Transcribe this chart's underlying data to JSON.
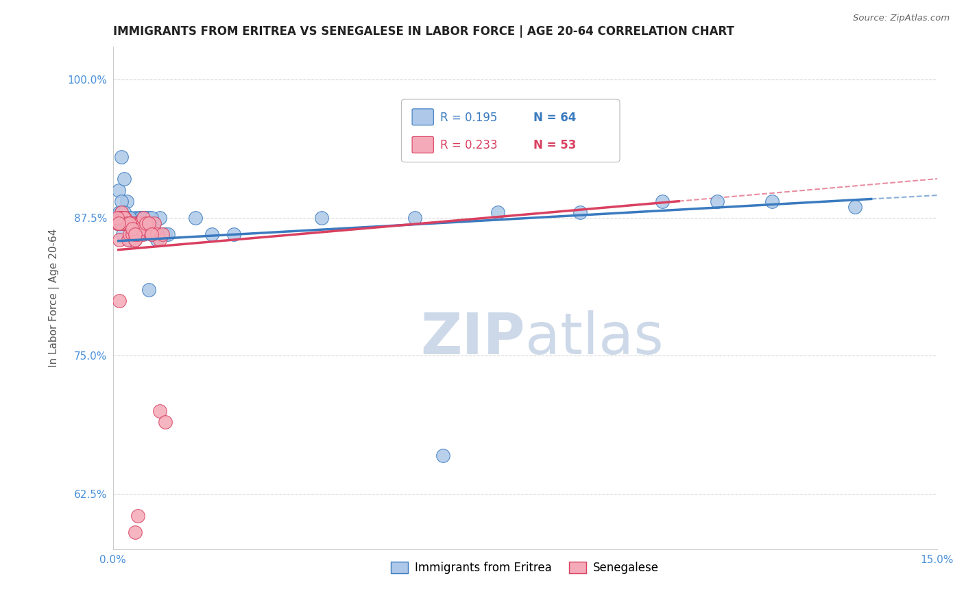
{
  "title": "IMMIGRANTS FROM ERITREA VS SENEGALESE IN LABOR FORCE | AGE 20-64 CORRELATION CHART",
  "source": "Source: ZipAtlas.com",
  "ylabel": "In Labor Force | Age 20-64",
  "xlim": [
    0.0,
    0.15
  ],
  "ylim": [
    0.575,
    1.03
  ],
  "yticks": [
    0.625,
    0.75,
    0.875,
    1.0
  ],
  "ytick_labels": [
    "62.5%",
    "75.0%",
    "87.5%",
    "100.0%"
  ],
  "xticks": [
    0.0,
    0.05,
    0.1,
    0.15
  ],
  "xtick_labels": [
    "0.0%",
    "",
    "",
    "15.0%"
  ],
  "r_eritrea": 0.195,
  "n_eritrea": 64,
  "r_senegal": 0.233,
  "n_senegal": 53,
  "eritrea_color": "#adc8e8",
  "senegal_color": "#f4aab8",
  "line_eritrea": "#3a7abf",
  "line_senegal": "#d94060",
  "watermark_color": "#cdd9e8",
  "tick_color": "#4a90d9",
  "grid_color": "#d8d8d8",
  "eritrea_x": [
    0.0008,
    0.001,
    0.0012,
    0.0015,
    0.0018,
    0.002,
    0.0022,
    0.0025,
    0.0028,
    0.003,
    0.0032,
    0.0035,
    0.0038,
    0.004,
    0.0042,
    0.0045,
    0.0048,
    0.005,
    0.0055,
    0.006,
    0.0065,
    0.007,
    0.0075,
    0.008,
    0.0085,
    0.009,
    0.0095,
    0.01,
    0.001,
    0.0012,
    0.0015,
    0.0018,
    0.0022,
    0.0025,
    0.003,
    0.0035,
    0.004,
    0.0045,
    0.005,
    0.0055,
    0.006,
    0.0065,
    0.007,
    0.0015,
    0.002,
    0.0025,
    0.003,
    0.0035,
    0.004,
    0.005,
    0.006,
    0.038,
    0.055,
    0.07,
    0.085,
    0.1,
    0.11,
    0.12,
    0.135,
    0.0065,
    0.06,
    0.015,
    0.018,
    0.022
  ],
  "eritrea_y": [
    0.87,
    0.9,
    0.88,
    0.93,
    0.86,
    0.91,
    0.875,
    0.89,
    0.87,
    0.855,
    0.875,
    0.86,
    0.87,
    0.875,
    0.87,
    0.87,
    0.875,
    0.875,
    0.865,
    0.87,
    0.87,
    0.87,
    0.87,
    0.855,
    0.875,
    0.86,
    0.86,
    0.86,
    0.875,
    0.875,
    0.89,
    0.87,
    0.87,
    0.87,
    0.875,
    0.87,
    0.87,
    0.87,
    0.87,
    0.875,
    0.875,
    0.875,
    0.875,
    0.88,
    0.88,
    0.875,
    0.875,
    0.87,
    0.87,
    0.86,
    0.87,
    0.875,
    0.875,
    0.88,
    0.88,
    0.89,
    0.89,
    0.89,
    0.885,
    0.81,
    0.66,
    0.875,
    0.86,
    0.86
  ],
  "senegal_x": [
    0.0008,
    0.001,
    0.0012,
    0.0015,
    0.0018,
    0.002,
    0.0022,
    0.0025,
    0.0028,
    0.003,
    0.0032,
    0.0035,
    0.0038,
    0.004,
    0.0042,
    0.0045,
    0.0048,
    0.005,
    0.0055,
    0.006,
    0.0065,
    0.007,
    0.0075,
    0.008,
    0.0085,
    0.009,
    0.0012,
    0.0015,
    0.0018,
    0.0022,
    0.0025,
    0.003,
    0.0035,
    0.004,
    0.0045,
    0.005,
    0.0055,
    0.006,
    0.0065,
    0.007,
    0.0015,
    0.002,
    0.0025,
    0.003,
    0.0035,
    0.004,
    0.0008,
    0.001,
    0.0085,
    0.0095,
    0.0012,
    0.004,
    0.0045
  ],
  "senegal_y": [
    0.87,
    0.87,
    0.855,
    0.88,
    0.87,
    0.875,
    0.87,
    0.87,
    0.855,
    0.86,
    0.87,
    0.87,
    0.87,
    0.855,
    0.865,
    0.87,
    0.87,
    0.87,
    0.86,
    0.865,
    0.87,
    0.86,
    0.87,
    0.86,
    0.855,
    0.86,
    0.875,
    0.875,
    0.875,
    0.875,
    0.87,
    0.87,
    0.86,
    0.855,
    0.86,
    0.865,
    0.875,
    0.87,
    0.87,
    0.86,
    0.87,
    0.875,
    0.87,
    0.87,
    0.865,
    0.86,
    0.875,
    0.87,
    0.7,
    0.69,
    0.8,
    0.59,
    0.605
  ]
}
